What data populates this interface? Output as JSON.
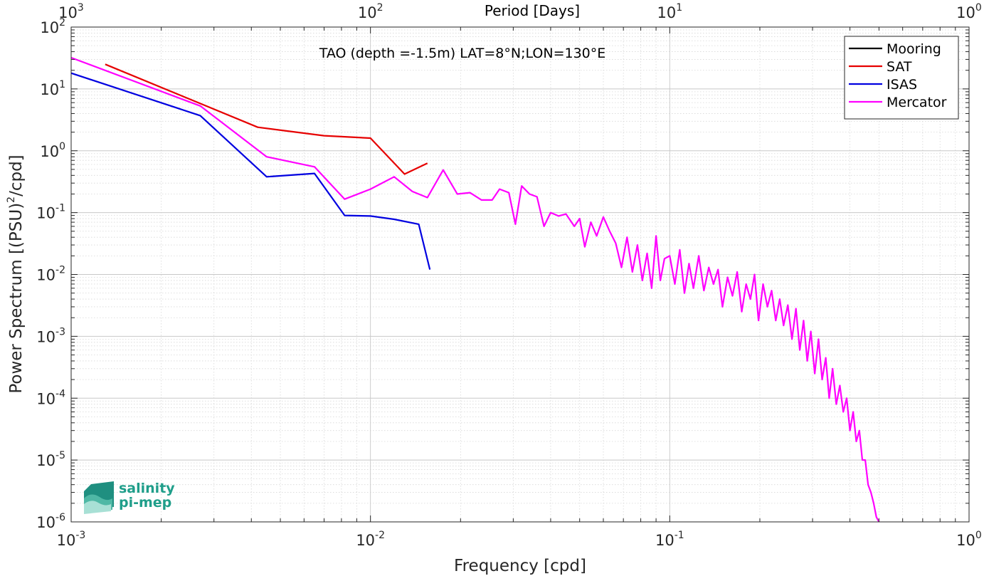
{
  "chart_data": {
    "type": "line",
    "annotation": "TAO (depth =-1.5m) LAT=8°N;LON=130°E",
    "xlabel": "Frequency [cpd]",
    "ylabel_parts": [
      "Power Spectrum [(PSU)",
      "2",
      "/cpd]"
    ],
    "top_xlabel": "Period [Days]",
    "xscale": "log",
    "yscale": "log",
    "xlim": [
      0.001,
      1
    ],
    "ylim": [
      1e-06,
      100
    ],
    "grid": true,
    "legend_position": "top-right",
    "x_ticks": [
      {
        "value": 0.001,
        "base": "10",
        "exp": "-3"
      },
      {
        "value": 0.01,
        "base": "10",
        "exp": "-2"
      },
      {
        "value": 0.1,
        "base": "10",
        "exp": "-1"
      },
      {
        "value": 1,
        "base": "10",
        "exp": "0"
      }
    ],
    "top_ticks": [
      {
        "value": 0.001,
        "base": "10",
        "exp": "3"
      },
      {
        "value": 0.01,
        "base": "10",
        "exp": "2"
      },
      {
        "value": 0.1,
        "base": "10",
        "exp": "1"
      },
      {
        "value": 1,
        "base": "10",
        "exp": "0"
      }
    ],
    "y_ticks": [
      {
        "value": 100,
        "base": "10",
        "exp": "2"
      },
      {
        "value": 10,
        "base": "10",
        "exp": "1"
      },
      {
        "value": 1,
        "base": "10",
        "exp": "0"
      },
      {
        "value": 0.1,
        "base": "10",
        "exp": "-1"
      },
      {
        "value": 0.01,
        "base": "10",
        "exp": "-2"
      },
      {
        "value": 0.001,
        "base": "10",
        "exp": "-3"
      },
      {
        "value": 0.0001,
        "base": "10",
        "exp": "-4"
      },
      {
        "value": 1e-05,
        "base": "10",
        "exp": "-5"
      },
      {
        "value": 1e-06,
        "base": "10",
        "exp": "-6"
      }
    ],
    "series": [
      {
        "name": "Mooring",
        "color": "#000000",
        "x": [],
        "y": []
      },
      {
        "name": "SAT",
        "color": "#e60000",
        "x": [
          0.0013,
          0.0027,
          0.0042,
          0.007,
          0.01,
          0.013,
          0.0155
        ],
        "y": [
          25,
          5.8,
          2.4,
          1.75,
          1.6,
          0.42,
          0.63
        ]
      },
      {
        "name": "ISAS",
        "color": "#0000e0",
        "x": [
          0.001,
          0.0027,
          0.0045,
          0.0065,
          0.0082,
          0.01,
          0.012,
          0.0145,
          0.0158
        ],
        "y": [
          18,
          3.7,
          0.38,
          0.43,
          0.09,
          0.088,
          0.078,
          0.065,
          0.012
        ]
      },
      {
        "name": "Mercator",
        "color": "#ff00ff",
        "x": [
          0.001,
          0.0027,
          0.0045,
          0.0065,
          0.0082,
          0.01,
          0.012,
          0.0138,
          0.0155,
          0.0175,
          0.0195,
          0.0215,
          0.0235,
          0.0255,
          0.027,
          0.029,
          0.0305,
          0.032,
          0.034,
          0.036,
          0.038,
          0.04,
          0.0425,
          0.045,
          0.048,
          0.05,
          0.052,
          0.0545,
          0.057,
          0.06,
          0.063,
          0.066,
          0.069,
          0.072,
          0.075,
          0.078,
          0.081,
          0.084,
          0.087,
          0.09,
          0.093,
          0.096,
          0.1,
          0.104,
          0.108,
          0.112,
          0.116,
          0.12,
          0.125,
          0.13,
          0.135,
          0.14,
          0.145,
          0.15,
          0.156,
          0.162,
          0.168,
          0.174,
          0.18,
          0.186,
          0.192,
          0.198,
          0.205,
          0.212,
          0.219,
          0.226,
          0.233,
          0.24,
          0.248,
          0.256,
          0.264,
          0.272,
          0.28,
          0.288,
          0.296,
          0.305,
          0.314,
          0.323,
          0.332,
          0.341,
          0.35,
          0.36,
          0.37,
          0.38,
          0.39,
          0.4,
          0.41,
          0.42,
          0.43,
          0.44,
          0.45,
          0.46,
          0.47,
          0.48,
          0.49,
          0.5
        ],
        "y": [
          32,
          5.3,
          0.8,
          0.55,
          0.165,
          0.24,
          0.38,
          0.22,
          0.175,
          0.49,
          0.2,
          0.21,
          0.16,
          0.16,
          0.24,
          0.21,
          0.065,
          0.27,
          0.2,
          0.18,
          0.06,
          0.1,
          0.088,
          0.095,
          0.06,
          0.08,
          0.028,
          0.07,
          0.042,
          0.085,
          0.05,
          0.032,
          0.013,
          0.04,
          0.011,
          0.03,
          0.008,
          0.022,
          0.006,
          0.042,
          0.008,
          0.018,
          0.02,
          0.007,
          0.025,
          0.005,
          0.015,
          0.006,
          0.02,
          0.0055,
          0.013,
          0.007,
          0.012,
          0.003,
          0.009,
          0.0045,
          0.011,
          0.0025,
          0.007,
          0.004,
          0.01,
          0.0018,
          0.007,
          0.003,
          0.0055,
          0.0018,
          0.004,
          0.0015,
          0.0032,
          0.0009,
          0.0028,
          0.0006,
          0.0018,
          0.0004,
          0.0012,
          0.00025,
          0.0009,
          0.0002,
          0.00045,
          0.0001,
          0.0003,
          8e-05,
          0.00016,
          6e-05,
          0.0001,
          3e-05,
          6e-05,
          2e-05,
          3e-05,
          1e-05,
          1e-05,
          4e-06,
          3e-06,
          2e-06,
          1.2e-06,
          1e-06
        ]
      }
    ],
    "logo": {
      "line1": "salinity",
      "line2": "pi-mep"
    }
  }
}
